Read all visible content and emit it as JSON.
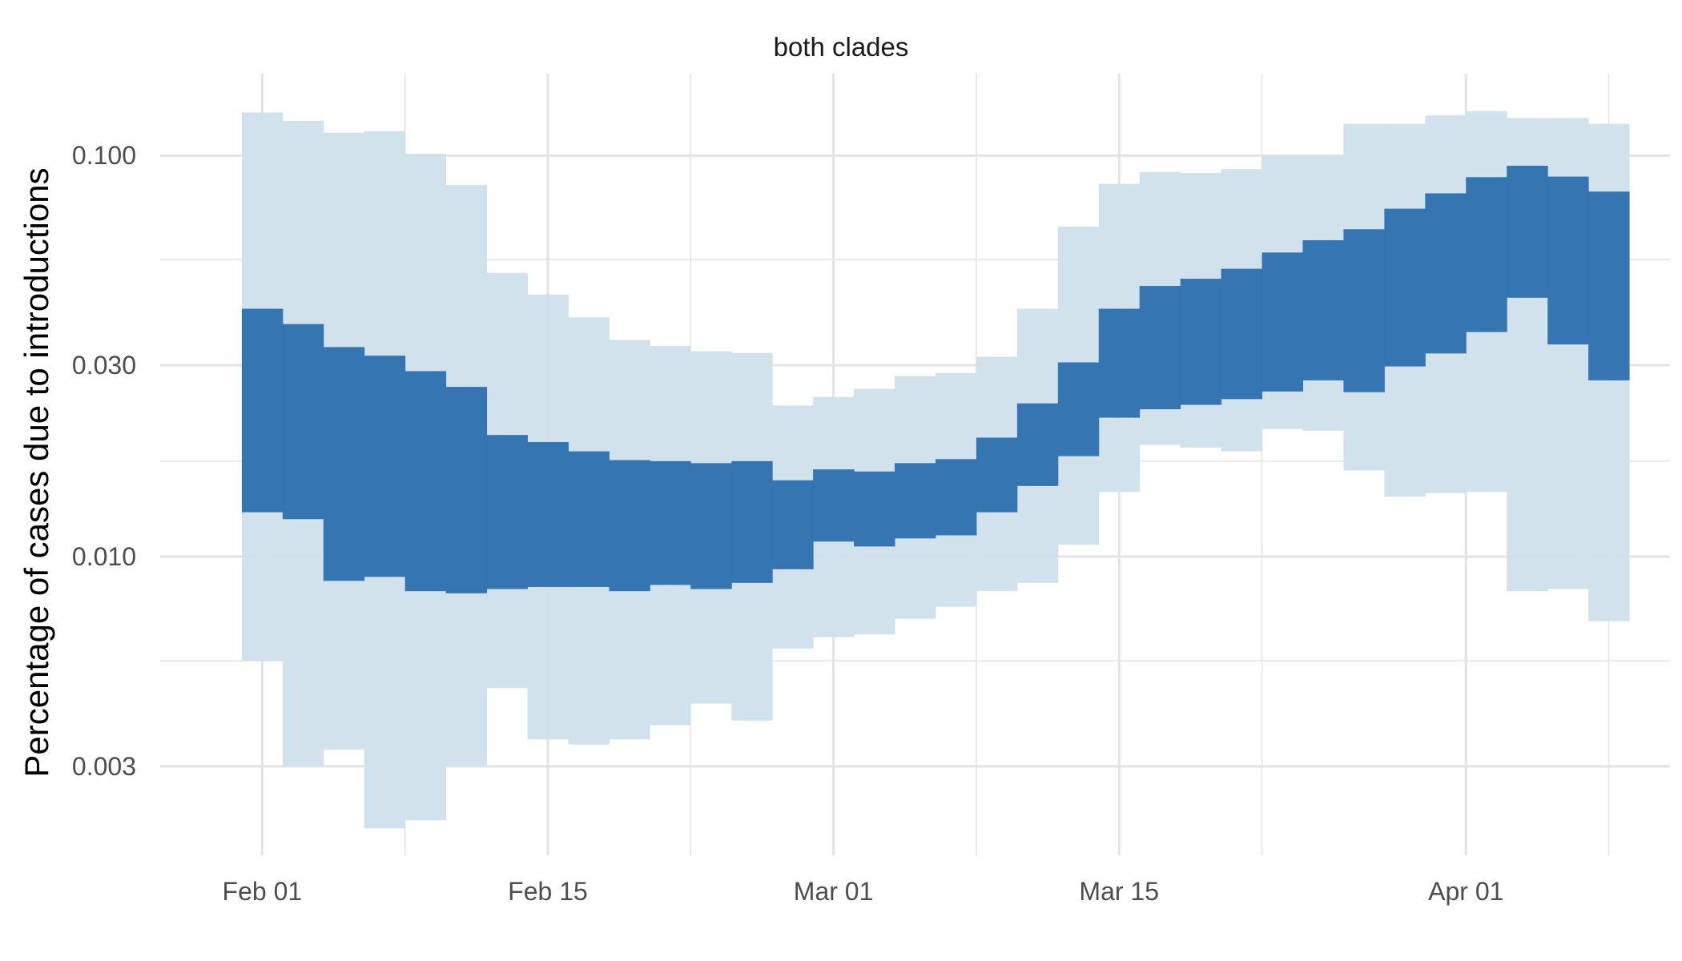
{
  "chart_data": {
    "type": "area",
    "title": "both clades",
    "xlabel": "",
    "ylabel": "Percentage of cases due to introductions",
    "y_scale": "log",
    "ylim": [
      0.0018,
      0.16
    ],
    "xlim": [
      "2021-01-27",
      "2021-04-11"
    ],
    "y_ticks": [
      0.003,
      0.01,
      0.03,
      0.1
    ],
    "y_tick_labels": [
      "0.003",
      "0.010",
      "0.030",
      "0.100"
    ],
    "y_minor_ticks": [
      0.0055,
      0.0173,
      0.055
    ],
    "x_ticks": [
      "2021-02-01",
      "2021-02-15",
      "2021-03-01",
      "2021-03-15",
      "2021-04-01"
    ],
    "x_tick_labels": [
      "Feb 01",
      "Feb 15",
      "Mar 01",
      "Mar 15",
      "Apr 01"
    ],
    "x_minor_ticks": [
      "2021-02-08",
      "2021-02-22",
      "2021-03-08",
      "2021-03-22",
      "2021-04-08"
    ],
    "grid": true,
    "colors": {
      "outer": "#cfe0ec",
      "inner": "#2f73b0",
      "grid": "#e3e3e3"
    },
    "series": [
      {
        "interval": "outer",
        "steps": [
          {
            "start": "2021-01-31",
            "end": "2021-02-02",
            "lower": 0.0055,
            "upper": 0.128
          },
          {
            "start": "2021-02-02",
            "end": "2021-02-04",
            "lower": 0.003,
            "upper": 0.122
          },
          {
            "start": "2021-02-04",
            "end": "2021-02-06",
            "lower": 0.0033,
            "upper": 0.114
          },
          {
            "start": "2021-02-06",
            "end": "2021-02-08",
            "lower": 0.0021,
            "upper": 0.115
          },
          {
            "start": "2021-02-08",
            "end": "2021-02-10",
            "lower": 0.0022,
            "upper": 0.101
          },
          {
            "start": "2021-02-10",
            "end": "2021-02-12",
            "lower": 0.003,
            "upper": 0.0845
          },
          {
            "start": "2021-02-12",
            "end": "2021-02-14",
            "lower": 0.0047,
            "upper": 0.051
          },
          {
            "start": "2021-02-14",
            "end": "2021-02-16",
            "lower": 0.0035,
            "upper": 0.045
          },
          {
            "start": "2021-02-16",
            "end": "2021-02-18",
            "lower": 0.0034,
            "upper": 0.0395
          },
          {
            "start": "2021-02-18",
            "end": "2021-02-20",
            "lower": 0.0035,
            "upper": 0.0347
          },
          {
            "start": "2021-02-20",
            "end": "2021-02-22",
            "lower": 0.0038,
            "upper": 0.0335
          },
          {
            "start": "2021-02-22",
            "end": "2021-02-24",
            "lower": 0.0043,
            "upper": 0.0325
          },
          {
            "start": "2021-02-24",
            "end": "2021-02-26",
            "lower": 0.0039,
            "upper": 0.0322
          },
          {
            "start": "2021-02-26",
            "end": "2021-02-28",
            "lower": 0.0059,
            "upper": 0.0238
          },
          {
            "start": "2021-02-28",
            "end": "2021-03-02",
            "lower": 0.0063,
            "upper": 0.025
          },
          {
            "start": "2021-03-02",
            "end": "2021-03-04",
            "lower": 0.0064,
            "upper": 0.0262
          },
          {
            "start": "2021-03-04",
            "end": "2021-03-06",
            "lower": 0.007,
            "upper": 0.0282
          },
          {
            "start": "2021-03-06",
            "end": "2021-03-08",
            "lower": 0.0075,
            "upper": 0.0287
          },
          {
            "start": "2021-03-08",
            "end": "2021-03-10",
            "lower": 0.0082,
            "upper": 0.0315
          },
          {
            "start": "2021-03-10",
            "end": "2021-03-12",
            "lower": 0.0086,
            "upper": 0.0415
          },
          {
            "start": "2021-03-12",
            "end": "2021-03-14",
            "lower": 0.0107,
            "upper": 0.0665
          },
          {
            "start": "2021-03-14",
            "end": "2021-03-16",
            "lower": 0.0145,
            "upper": 0.085
          },
          {
            "start": "2021-03-16",
            "end": "2021-03-18",
            "lower": 0.019,
            "upper": 0.091
          },
          {
            "start": "2021-03-18",
            "end": "2021-03-20",
            "lower": 0.0187,
            "upper": 0.0905
          },
          {
            "start": "2021-03-20",
            "end": "2021-03-22",
            "lower": 0.0183,
            "upper": 0.0925
          },
          {
            "start": "2021-03-22",
            "end": "2021-03-24",
            "lower": 0.0208,
            "upper": 0.1
          },
          {
            "start": "2021-03-24",
            "end": "2021-03-26",
            "lower": 0.0206,
            "upper": 0.1
          },
          {
            "start": "2021-03-26",
            "end": "2021-03-28",
            "lower": 0.0164,
            "upper": 0.12
          },
          {
            "start": "2021-03-28",
            "end": "2021-03-30",
            "lower": 0.0141,
            "upper": 0.12
          },
          {
            "start": "2021-03-30",
            "end": "2021-04-01",
            "lower": 0.0144,
            "upper": 0.126
          },
          {
            "start": "2021-04-01",
            "end": "2021-04-03",
            "lower": 0.0145,
            "upper": 0.129
          },
          {
            "start": "2021-04-03",
            "end": "2021-04-05",
            "lower": 0.0082,
            "upper": 0.124
          },
          {
            "start": "2021-04-05",
            "end": "2021-04-07",
            "lower": 0.0083,
            "upper": 0.124
          },
          {
            "start": "2021-04-07",
            "end": "2021-04-09",
            "lower": 0.0069,
            "upper": 0.12
          }
        ]
      },
      {
        "interval": "inner",
        "steps": [
          {
            "start": "2021-01-31",
            "end": "2021-02-02",
            "lower": 0.0129,
            "upper": 0.0415
          },
          {
            "start": "2021-02-02",
            "end": "2021-02-04",
            "lower": 0.0124,
            "upper": 0.038
          },
          {
            "start": "2021-02-04",
            "end": "2021-02-06",
            "lower": 0.0087,
            "upper": 0.0333
          },
          {
            "start": "2021-02-06",
            "end": "2021-02-08",
            "lower": 0.0089,
            "upper": 0.0317
          },
          {
            "start": "2021-02-08",
            "end": "2021-02-10",
            "lower": 0.0082,
            "upper": 0.029
          },
          {
            "start": "2021-02-10",
            "end": "2021-02-12",
            "lower": 0.0081,
            "upper": 0.0265
          },
          {
            "start": "2021-02-12",
            "end": "2021-02-14",
            "lower": 0.0083,
            "upper": 0.0201
          },
          {
            "start": "2021-02-14",
            "end": "2021-02-16",
            "lower": 0.0084,
            "upper": 0.0193
          },
          {
            "start": "2021-02-16",
            "end": "2021-02-18",
            "lower": 0.0084,
            "upper": 0.0183
          },
          {
            "start": "2021-02-18",
            "end": "2021-02-20",
            "lower": 0.0082,
            "upper": 0.0174
          },
          {
            "start": "2021-02-20",
            "end": "2021-02-22",
            "lower": 0.0085,
            "upper": 0.0173
          },
          {
            "start": "2021-02-22",
            "end": "2021-02-24",
            "lower": 0.0083,
            "upper": 0.0171
          },
          {
            "start": "2021-02-24",
            "end": "2021-02-26",
            "lower": 0.0086,
            "upper": 0.0173
          },
          {
            "start": "2021-02-26",
            "end": "2021-02-28",
            "lower": 0.0093,
            "upper": 0.0155
          },
          {
            "start": "2021-02-28",
            "end": "2021-03-02",
            "lower": 0.0109,
            "upper": 0.0165
          },
          {
            "start": "2021-03-02",
            "end": "2021-03-04",
            "lower": 0.0106,
            "upper": 0.0163
          },
          {
            "start": "2021-03-04",
            "end": "2021-03-06",
            "lower": 0.0111,
            "upper": 0.0171
          },
          {
            "start": "2021-03-06",
            "end": "2021-03-08",
            "lower": 0.0113,
            "upper": 0.0175
          },
          {
            "start": "2021-03-08",
            "end": "2021-03-10",
            "lower": 0.0129,
            "upper": 0.0198
          },
          {
            "start": "2021-03-10",
            "end": "2021-03-12",
            "lower": 0.015,
            "upper": 0.0241
          },
          {
            "start": "2021-03-12",
            "end": "2021-03-14",
            "lower": 0.0178,
            "upper": 0.0305
          },
          {
            "start": "2021-03-14",
            "end": "2021-03-16",
            "lower": 0.0222,
            "upper": 0.0415
          },
          {
            "start": "2021-03-16",
            "end": "2021-03-18",
            "lower": 0.0233,
            "upper": 0.0473
          },
          {
            "start": "2021-03-18",
            "end": "2021-03-20",
            "lower": 0.0239,
            "upper": 0.0493
          },
          {
            "start": "2021-03-20",
            "end": "2021-03-22",
            "lower": 0.0247,
            "upper": 0.0522
          },
          {
            "start": "2021-03-22",
            "end": "2021-03-24",
            "lower": 0.0258,
            "upper": 0.0573
          },
          {
            "start": "2021-03-24",
            "end": "2021-03-26",
            "lower": 0.0275,
            "upper": 0.0615
          },
          {
            "start": "2021-03-26",
            "end": "2021-03-28",
            "lower": 0.0257,
            "upper": 0.0655
          },
          {
            "start": "2021-03-28",
            "end": "2021-03-30",
            "lower": 0.0298,
            "upper": 0.0737
          },
          {
            "start": "2021-03-30",
            "end": "2021-04-01",
            "lower": 0.0321,
            "upper": 0.0805
          },
          {
            "start": "2021-04-01",
            "end": "2021-04-03",
            "lower": 0.0363,
            "upper": 0.0883
          },
          {
            "start": "2021-04-03",
            "end": "2021-04-05",
            "lower": 0.0442,
            "upper": 0.0943
          },
          {
            "start": "2021-04-05",
            "end": "2021-04-07",
            "lower": 0.0338,
            "upper": 0.0886
          },
          {
            "start": "2021-04-07",
            "end": "2021-04-09",
            "lower": 0.0275,
            "upper": 0.0813
          }
        ]
      }
    ]
  }
}
